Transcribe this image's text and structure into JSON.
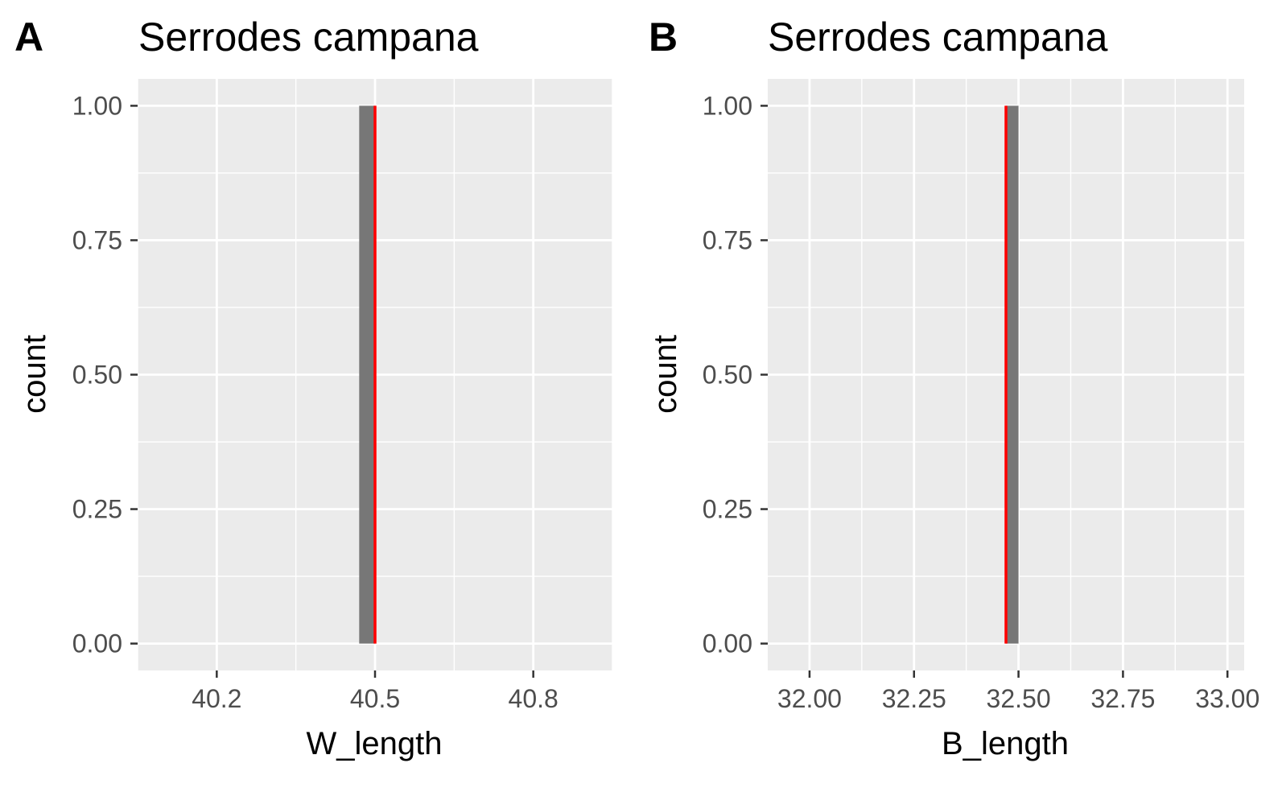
{
  "chart_data": [
    {
      "type": "bar",
      "panel_tag": "A",
      "title": "Serrodes campana",
      "xlabel": "W_length",
      "ylabel": "count",
      "xlim": [
        40.05,
        40.95
      ],
      "ylim": [
        -0.05,
        1.05
      ],
      "xticks": [
        40.2,
        40.5,
        40.8
      ],
      "xtick_labels": [
        "40.2",
        "40.5",
        "40.8"
      ],
      "yticks": [
        0,
        0.25,
        0.5,
        0.75,
        1.0
      ],
      "ytick_labels": [
        "0.00",
        "0.25",
        "0.50",
        "0.75",
        "1.00"
      ],
      "bars": [
        {
          "xmin": 40.47,
          "xmax": 40.5,
          "count": 1
        }
      ],
      "vline": {
        "x": 40.5,
        "color": "#ff0000"
      },
      "grid": true,
      "bar_color": "#777777"
    },
    {
      "type": "bar",
      "panel_tag": "B",
      "title": "Serrodes campana",
      "xlabel": "B_length",
      "ylabel": "count",
      "xlim": [
        31.9,
        33.04
      ],
      "ylim": [
        -0.05,
        1.05
      ],
      "xticks": [
        32.0,
        32.25,
        32.5,
        32.75,
        33.0
      ],
      "xtick_labels": [
        "32.00",
        "32.25",
        "32.50",
        "32.75",
        "33.00"
      ],
      "yticks": [
        0,
        0.25,
        0.5,
        0.75,
        1.0
      ],
      "ytick_labels": [
        "0.00",
        "0.25",
        "0.50",
        "0.75",
        "1.00"
      ],
      "bars": [
        {
          "xmin": 32.47,
          "xmax": 32.5,
          "count": 1
        }
      ],
      "vline": {
        "x": 32.47,
        "color": "#ff0000"
      },
      "grid": true,
      "bar_color": "#777777"
    }
  ]
}
